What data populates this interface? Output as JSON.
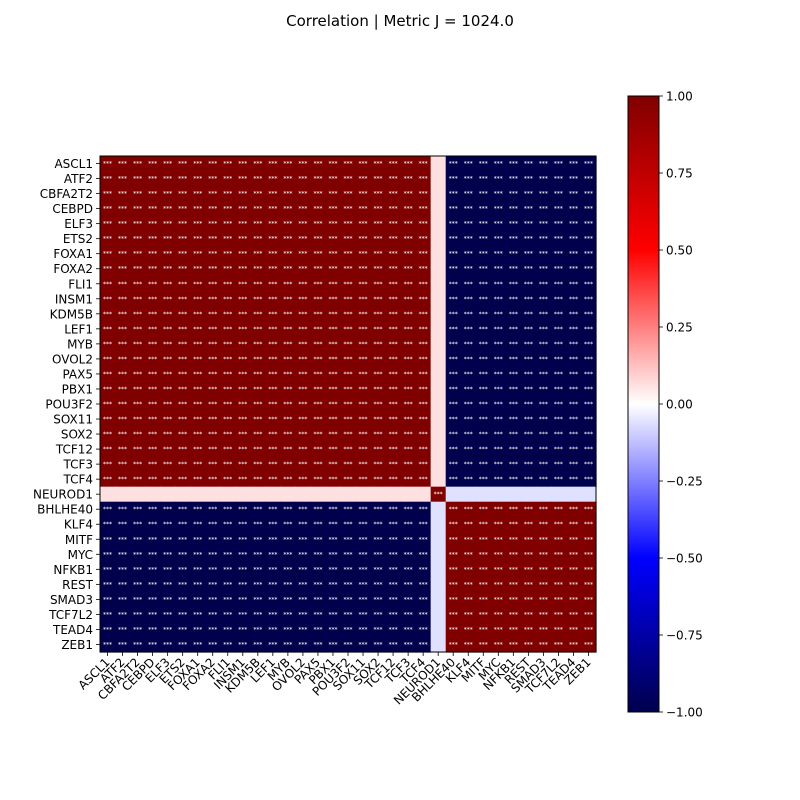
{
  "chart_data": {
    "type": "heatmap",
    "title": "Correlation | Metric J = 1024.0",
    "labels": [
      "ASCL1",
      "ATF2",
      "CBFA2T2",
      "CEBPD",
      "ELF3",
      "ETS2",
      "FOXA1",
      "FOXA2",
      "FLI1",
      "INSM1",
      "KDM5B",
      "LEF1",
      "MYB",
      "OVOL2",
      "PAX5",
      "PBX1",
      "POU3F2",
      "SOX11",
      "SOX2",
      "TCF12",
      "TCF3",
      "TCF4",
      "NEUROD1",
      "BHLHE40",
      "KLF4",
      "MITF",
      "MYC",
      "NFKB1",
      "REST",
      "SMAD3",
      "TCF7L2",
      "TEAD4",
      "ZEB1"
    ],
    "groups": {
      "A": [
        "ASCL1",
        "ATF2",
        "CBFA2T2",
        "CEBPD",
        "ELF3",
        "ETS2",
        "FOXA1",
        "FOXA2",
        "FLI1",
        "INSM1",
        "KDM5B",
        "LEF1",
        "MYB",
        "OVOL2",
        "PAX5",
        "PBX1",
        "POU3F2",
        "SOX11",
        "SOX2",
        "TCF12",
        "TCF3",
        "TCF4"
      ],
      "C": [
        "NEUROD1"
      ],
      "B": [
        "BHLHE40",
        "KLF4",
        "MITF",
        "MYC",
        "NFKB1",
        "REST",
        "SMAD3",
        "TCF7L2",
        "TEAD4",
        "ZEB1"
      ]
    },
    "block_values": {
      "A_A": 1.0,
      "B_B": 1.0,
      "A_B": -1.0,
      "A_C": 0.06,
      "B_C": -0.06,
      "C_C": 1.0
    },
    "significance_annotation": "***",
    "annotate_blocks": [
      "A_A",
      "A_B",
      "B_B",
      "C_C"
    ],
    "colormap": "seismic",
    "colorbar": {
      "vmin": -1.0,
      "vmax": 1.0,
      "ticks": [
        -1.0,
        -0.75,
        -0.5,
        -0.25,
        0.0,
        0.25,
        0.5,
        0.75,
        1.0
      ],
      "tick_labels": [
        "−1.00",
        "−0.75",
        "−0.50",
        "−0.25",
        "0.00",
        "0.25",
        "0.50",
        "0.75",
        "1.00"
      ]
    }
  }
}
